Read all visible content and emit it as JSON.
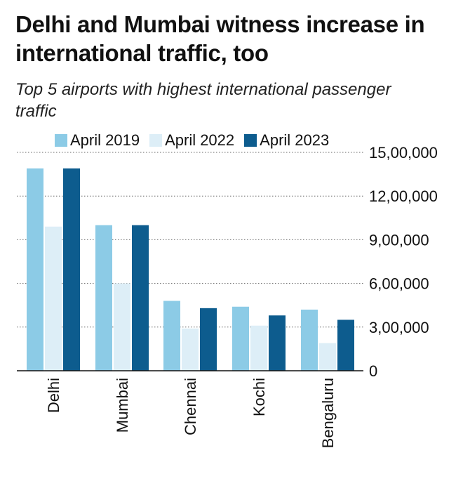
{
  "title": "Delhi and Mumbai witness increase in international traffic, too",
  "subtitle": "Top 5 airports with highest international passenger traffic",
  "colors": {
    "april_2019": "#8ccbe6",
    "april_2022": "#ddeef7",
    "april_2023": "#0d5c8e"
  },
  "chart_data": {
    "type": "bar",
    "categories": [
      "Delhi",
      "Mumbai",
      "Chennai",
      "Kochi",
      "Bengaluru"
    ],
    "series": [
      {
        "name": "April 2019",
        "values": [
          1390000,
          1000000,
          480000,
          440000,
          420000
        ]
      },
      {
        "name": "April 2022",
        "values": [
          990000,
          600000,
          290000,
          310000,
          190000
        ]
      },
      {
        "name": "April 2023",
        "values": [
          1390000,
          1000000,
          430000,
          380000,
          350000
        ]
      }
    ],
    "yticks": [
      0,
      300000,
      600000,
      900000,
      1200000,
      1500000
    ],
    "ytick_labels": [
      "0",
      "3,00,000",
      "6,00,000",
      "9,00,000",
      "12,00,000",
      "15,00,000"
    ],
    "ylim": [
      0,
      1500000
    ],
    "grid": true,
    "legend_position": "top"
  }
}
